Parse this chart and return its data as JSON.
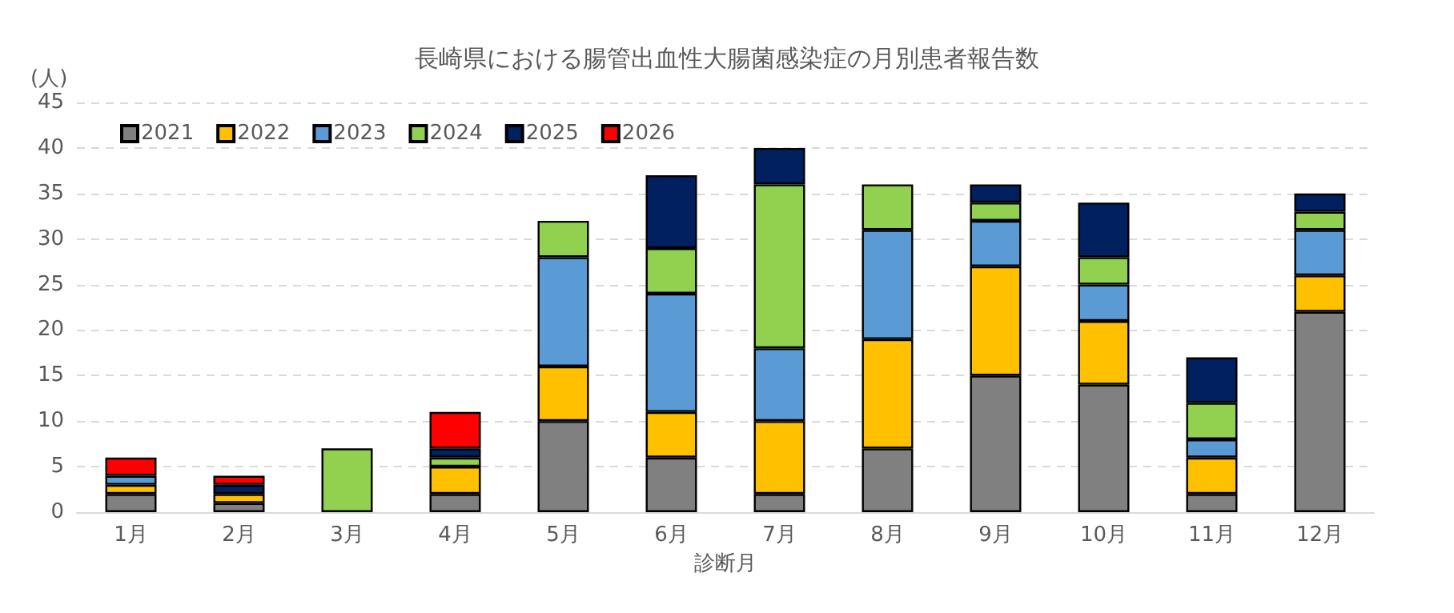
{
  "chart_data": {
    "type": "bar",
    "title": "長崎県における腸管出血性大腸菌感染症の月別患者報告数",
    "xlabel": "診断月",
    "ylabel": "(人)",
    "categories": [
      "1月",
      "2月",
      "3月",
      "4月",
      "5月",
      "6月",
      "7月",
      "8月",
      "9月",
      "10月",
      "11月",
      "12月"
    ],
    "stacked": true,
    "ylim": [
      0,
      45
    ],
    "yticks": [
      0,
      5,
      10,
      15,
      20,
      25,
      30,
      35,
      40,
      45
    ],
    "grid": "y",
    "legend": "top left",
    "series": [
      {
        "name": "2021",
        "color": "#808080",
        "values": [
          2,
          1,
          0,
          2,
          10,
          6,
          2,
          7,
          15,
          14,
          2,
          22
        ]
      },
      {
        "name": "2022",
        "color": "#ffc000",
        "values": [
          1,
          1,
          0,
          3,
          6,
          5,
          8,
          12,
          12,
          7,
          4,
          4
        ]
      },
      {
        "name": "2023",
        "color": "#5b9bd5",
        "values": [
          1,
          0,
          0,
          0,
          12,
          13,
          8,
          12,
          5,
          4,
          2,
          5
        ]
      },
      {
        "name": "2024",
        "color": "#92d050",
        "values": [
          0,
          0,
          7,
          1,
          4,
          5,
          18,
          5,
          2,
          3,
          4,
          2
        ]
      },
      {
        "name": "2025",
        "color": "#002060",
        "values": [
          0,
          1,
          0,
          1,
          0,
          8,
          4,
          0,
          2,
          6,
          5,
          2
        ]
      },
      {
        "name": "2026",
        "color": "#ff0000",
        "values": [
          2,
          1,
          0,
          4,
          0,
          0,
          0,
          0,
          0,
          0,
          0,
          0
        ]
      }
    ]
  }
}
